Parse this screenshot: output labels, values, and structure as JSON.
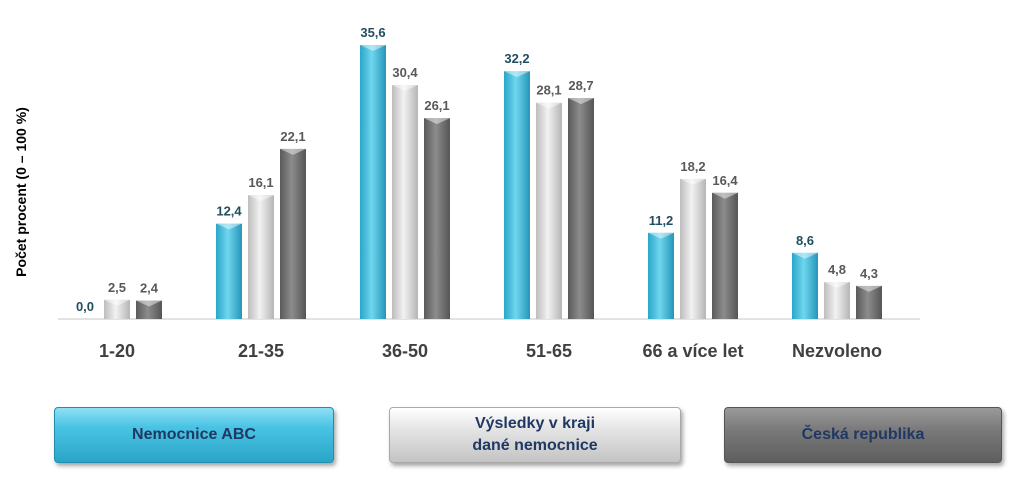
{
  "chart_data": {
    "type": "bar",
    "ylabel": "Počet procent  (0 – 100 %)",
    "ylim": [
      0,
      36
    ],
    "grid": false,
    "legend_position": "bottom",
    "categories": [
      "1-20",
      "21-35",
      "36-50",
      "51-65",
      "66 a více let",
      "Nezvoleno"
    ],
    "series": [
      {
        "name": "Nemocnice ABC",
        "values": [
          0.0,
          12.4,
          35.6,
          32.2,
          11.2,
          8.6
        ],
        "labels": [
          "0,0",
          "12,4",
          "35,6",
          "32,2",
          "11,2",
          "8,6"
        ],
        "color": "#3cbfe0",
        "label_color": "#1f4e5f"
      },
      {
        "name": "Výsledky v kraji\ndané nemocnice",
        "values": [
          2.5,
          16.1,
          30.4,
          28.1,
          18.2,
          4.8
        ],
        "labels": [
          "2,5",
          "16,1",
          "30,4",
          "28,1",
          "18,2",
          "4,8"
        ],
        "color": "#d4d4d4",
        "label_color": "#595959"
      },
      {
        "name": "Česká republika",
        "values": [
          2.4,
          22.1,
          26.1,
          28.7,
          16.4,
          4.3
        ],
        "labels": [
          "2,4",
          "22,1",
          "26,1",
          "28,7",
          "16,4",
          "4,3"
        ],
        "color": "#6e6e6e",
        "label_color": "#595959"
      }
    ]
  }
}
